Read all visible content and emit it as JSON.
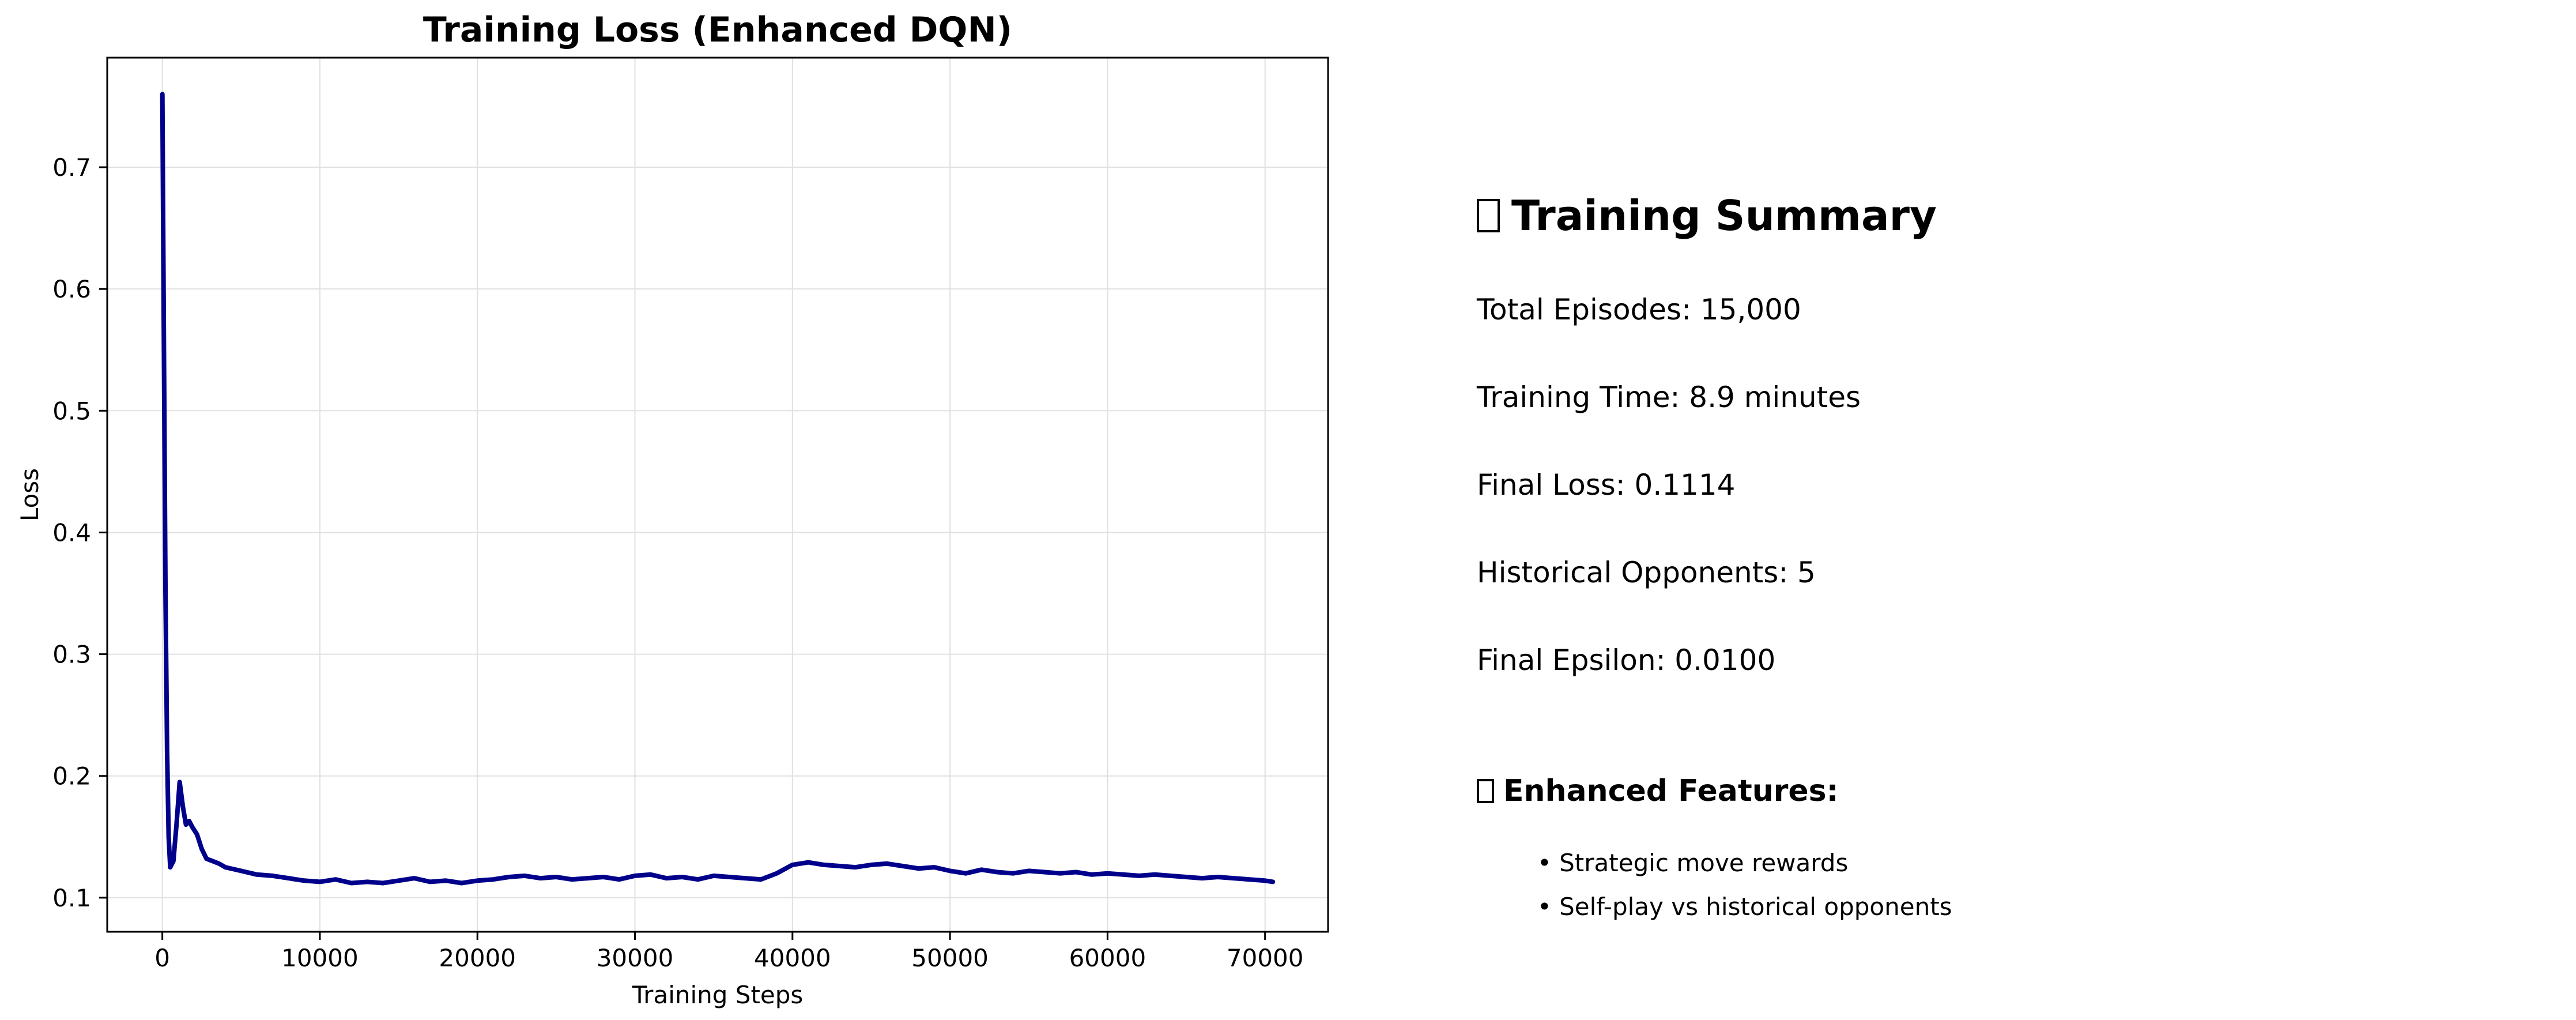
{
  "chart_data": {
    "type": "line",
    "title": "Training Loss (Enhanced DQN)",
    "xlabel": "Training Steps",
    "ylabel": "Loss",
    "xlim": [
      -3500,
      74000
    ],
    "ylim": [
      0.072,
      0.79
    ],
    "x_ticks": [
      0,
      10000,
      20000,
      30000,
      40000,
      50000,
      60000,
      70000
    ],
    "y_ticks": [
      0.1,
      0.2,
      0.3,
      0.4,
      0.5,
      0.6,
      0.7
    ],
    "grid": true,
    "line_color": "#00008b",
    "series": [
      {
        "x": [
          0,
          100,
          200,
          300,
          400,
          500,
          700,
          900,
          1100,
          1300,
          1500,
          1700,
          1900,
          2200,
          2500,
          2800,
          3200,
          3600,
          4000,
          5000,
          6000,
          7000,
          8000,
          9000,
          10000,
          11000,
          12000,
          13000,
          14000,
          15000,
          16000,
          17000,
          18000,
          19000,
          20000,
          21000,
          22000,
          23000,
          24000,
          25000,
          26000,
          27000,
          28000,
          29000,
          30000,
          31000,
          32000,
          33000,
          34000,
          35000,
          36000,
          37000,
          38000,
          39000,
          40000,
          41000,
          42000,
          43000,
          44000,
          45000,
          46000,
          47000,
          48000,
          49000,
          50000,
          51000,
          52000,
          53000,
          54000,
          55000,
          56000,
          57000,
          58000,
          59000,
          60000,
          61000,
          62000,
          63000,
          64000,
          65000,
          66000,
          67000,
          68000,
          69000,
          70000,
          70500
        ],
        "y": [
          0.76,
          0.55,
          0.35,
          0.22,
          0.15,
          0.125,
          0.13,
          0.16,
          0.195,
          0.175,
          0.16,
          0.163,
          0.158,
          0.152,
          0.14,
          0.132,
          0.13,
          0.128,
          0.125,
          0.122,
          0.119,
          0.118,
          0.116,
          0.114,
          0.113,
          0.115,
          0.112,
          0.113,
          0.112,
          0.114,
          0.116,
          0.113,
          0.114,
          0.112,
          0.114,
          0.115,
          0.117,
          0.118,
          0.116,
          0.117,
          0.115,
          0.116,
          0.117,
          0.115,
          0.118,
          0.119,
          0.116,
          0.117,
          0.115,
          0.118,
          0.117,
          0.116,
          0.115,
          0.12,
          0.127,
          0.129,
          0.127,
          0.126,
          0.125,
          0.127,
          0.128,
          0.126,
          0.124,
          0.125,
          0.122,
          0.12,
          0.123,
          0.121,
          0.12,
          0.122,
          0.121,
          0.12,
          0.121,
          0.119,
          0.12,
          0.119,
          0.118,
          0.119,
          0.118,
          0.117,
          0.116,
          0.117,
          0.116,
          0.115,
          0.114,
          0.113
        ]
      }
    ]
  },
  "summary": {
    "title_icon": "bar-chart-emoji",
    "title": "Training Summary",
    "total_episodes": "Total Episodes: 15,000",
    "training_time": "Training Time: 8.9 minutes",
    "final_loss": "Final Loss: 0.1114",
    "historical_opponents": "Historical Opponents: 5",
    "final_epsilon": "Final Epsilon: 0.0100",
    "features_icon": "target-emoji",
    "features_title": "Enhanced Features:",
    "features": [
      "• Strategic move rewards",
      "• Self-play vs historical opponents"
    ]
  }
}
